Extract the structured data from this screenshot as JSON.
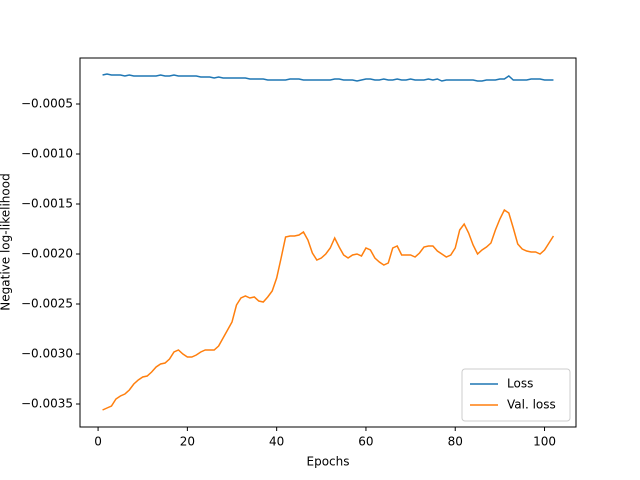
{
  "chart_data": {
    "type": "line",
    "x_label": "Epochs",
    "y_label": "Negative log-likelihood",
    "x": [
      1,
      2,
      3,
      4,
      5,
      6,
      7,
      8,
      9,
      10,
      11,
      12,
      13,
      14,
      15,
      16,
      17,
      18,
      19,
      20,
      21,
      22,
      23,
      24,
      25,
      26,
      27,
      28,
      29,
      30,
      31,
      32,
      33,
      34,
      35,
      36,
      37,
      38,
      39,
      40,
      41,
      42,
      43,
      44,
      45,
      46,
      47,
      48,
      49,
      50,
      51,
      52,
      53,
      54,
      55,
      56,
      57,
      58,
      59,
      60,
      61,
      62,
      63,
      64,
      65,
      66,
      67,
      68,
      69,
      70,
      71,
      72,
      73,
      74,
      75,
      76,
      77,
      78,
      79,
      80,
      81,
      82,
      83,
      84,
      85,
      86,
      87,
      88,
      89,
      90,
      91,
      92,
      93,
      94,
      95,
      96,
      97,
      98,
      99,
      100,
      101,
      102
    ],
    "series": [
      {
        "name": "Loss",
        "color": "#1f77b4",
        "values": [
          -0.00021,
          -0.0002,
          -0.00021,
          -0.00021,
          -0.00021,
          -0.00022,
          -0.00021,
          -0.00022,
          -0.00022,
          -0.00022,
          -0.00022,
          -0.00022,
          -0.00022,
          -0.00021,
          -0.00022,
          -0.00022,
          -0.00021,
          -0.00022,
          -0.00022,
          -0.00022,
          -0.00022,
          -0.00022,
          -0.00023,
          -0.00023,
          -0.00023,
          -0.00024,
          -0.00023,
          -0.00024,
          -0.00024,
          -0.00024,
          -0.00024,
          -0.00024,
          -0.00024,
          -0.00025,
          -0.00025,
          -0.00025,
          -0.00025,
          -0.00026,
          -0.00026,
          -0.00026,
          -0.00026,
          -0.00026,
          -0.00025,
          -0.00025,
          -0.00025,
          -0.00026,
          -0.00026,
          -0.00026,
          -0.00026,
          -0.00026,
          -0.00026,
          -0.00026,
          -0.00025,
          -0.00025,
          -0.00026,
          -0.00026,
          -0.00026,
          -0.00027,
          -0.00026,
          -0.00025,
          -0.00025,
          -0.00026,
          -0.00026,
          -0.00025,
          -0.00026,
          -0.00026,
          -0.00025,
          -0.00026,
          -0.00026,
          -0.00025,
          -0.00026,
          -0.00026,
          -0.00026,
          -0.00025,
          -0.00026,
          -0.00025,
          -0.00027,
          -0.00026,
          -0.00026,
          -0.00026,
          -0.00026,
          -0.00026,
          -0.00026,
          -0.00026,
          -0.00027,
          -0.00027,
          -0.00026,
          -0.00026,
          -0.00026,
          -0.00025,
          -0.00025,
          -0.00022,
          -0.00026,
          -0.00026,
          -0.00026,
          -0.00026,
          -0.00025,
          -0.00025,
          -0.00025,
          -0.00026,
          -0.00026,
          -0.00026
        ]
      },
      {
        "name": "Val. loss",
        "color": "#ff7f0e",
        "values": [
          -0.00356,
          -0.00354,
          -0.00352,
          -0.00345,
          -0.00342,
          -0.0034,
          -0.00336,
          -0.0033,
          -0.00326,
          -0.00323,
          -0.00322,
          -0.00318,
          -0.00313,
          -0.0031,
          -0.00309,
          -0.00305,
          -0.00298,
          -0.00296,
          -0.003,
          -0.00303,
          -0.00303,
          -0.00301,
          -0.00298,
          -0.00296,
          -0.00296,
          -0.00296,
          -0.00292,
          -0.00284,
          -0.00276,
          -0.00268,
          -0.00251,
          -0.00244,
          -0.00242,
          -0.00244,
          -0.00243,
          -0.00247,
          -0.00248,
          -0.00243,
          -0.00237,
          -0.00224,
          -0.00204,
          -0.00183,
          -0.00182,
          -0.00182,
          -0.00181,
          -0.00178,
          -0.00186,
          -0.00199,
          -0.00206,
          -0.00204,
          -0.002,
          -0.00194,
          -0.00184,
          -0.00193,
          -0.00201,
          -0.00204,
          -0.00201,
          -0.002,
          -0.00202,
          -0.00194,
          -0.00196,
          -0.00204,
          -0.00208,
          -0.00211,
          -0.00209,
          -0.00194,
          -0.00192,
          -0.00201,
          -0.00201,
          -0.00201,
          -0.00203,
          -0.00199,
          -0.00193,
          -0.00192,
          -0.00192,
          -0.00197,
          -0.002,
          -0.00203,
          -0.00201,
          -0.00194,
          -0.00176,
          -0.0017,
          -0.00179,
          -0.00191,
          -0.002,
          -0.00196,
          -0.00193,
          -0.00189,
          -0.00176,
          -0.00165,
          -0.00156,
          -0.00159,
          -0.00174,
          -0.0019,
          -0.00195,
          -0.00197,
          -0.00198,
          -0.00198,
          -0.002,
          -0.00196,
          -0.00189,
          -0.00182
        ]
      }
    ],
    "xlim": [
      -4.05,
      107.05
    ],
    "xticks": [
      0,
      20,
      40,
      60,
      80,
      100
    ],
    "ylim": [
      -0.00373,
      -4e-05
    ],
    "yticks": [
      {
        "value": -0.0005,
        "label": "−0.0005"
      },
      {
        "value": -0.001,
        "label": "−0.0010"
      },
      {
        "value": -0.0015,
        "label": "−0.0015"
      },
      {
        "value": -0.002,
        "label": "−0.0020"
      },
      {
        "value": -0.0025,
        "label": "−0.0025"
      },
      {
        "value": -0.003,
        "label": "−0.0030"
      },
      {
        "value": -0.0035,
        "label": "−0.0035"
      }
    ],
    "grid": false,
    "legend": "lower right"
  }
}
